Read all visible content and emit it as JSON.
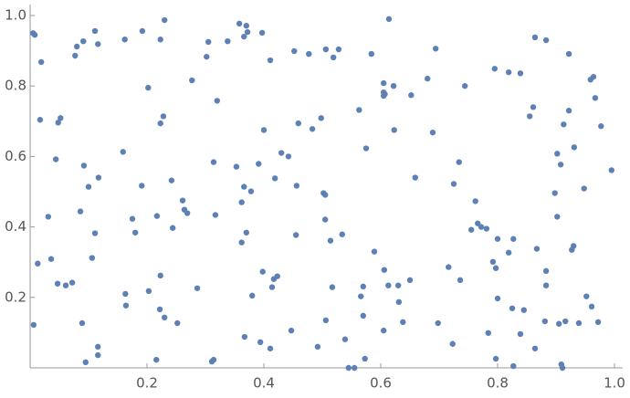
{
  "chart_data": {
    "type": "scatter",
    "color": "#5e81b5",
    "xlim": [
      0,
      1
    ],
    "ylim": [
      0,
      1
    ],
    "xticks": [
      0.2,
      0.4,
      0.6,
      0.8,
      {
        "value": 1,
        "label": "1.0"
      }
    ],
    "yticks": [
      0.2,
      0.4,
      0.6,
      0.8,
      {
        "value": 1,
        "label": "1.0"
      }
    ],
    "x": [
      0.005,
      0.008,
      0.019,
      0.017,
      0.006,
      0.013,
      0.031,
      0.036,
      0.044,
      0.048,
      0.052,
      0.047,
      0.061,
      0.072,
      0.077,
      0.08,
      0.091,
      0.092,
      0.086,
      0.089,
      0.095,
      0.1,
      0.111,
      0.116,
      0.117,
      0.111,
      0.106,
      0.116,
      0.116,
      0.159,
      0.163,
      0.164,
      0.162,
      0.175,
      0.18,
      0.192,
      0.191,
      0.202,
      0.203,
      0.216,
      0.217,
      0.223,
      0.23,
      0.228,
      0.223,
      0.223,
      0.222,
      0.23,
      0.242,
      0.244,
      0.252,
      0.261,
      0.264,
      0.269,
      0.277,
      0.286,
      0.302,
      0.305,
      0.314,
      0.311,
      0.314,
      0.317,
      0.32,
      0.338,
      0.358,
      0.37,
      0.372,
      0.366,
      0.353,
      0.362,
      0.366,
      0.362,
      0.37,
      0.378,
      0.38,
      0.367,
      0.391,
      0.397,
      0.4,
      0.398,
      0.411,
      0.414,
      0.417,
      0.423,
      0.419,
      0.43,
      0.442,
      0.394,
      0.411,
      0.447,
      0.452,
      0.456,
      0.455,
      0.459,
      0.477,
      0.483,
      0.492,
      0.498,
      0.502,
      0.505,
      0.505,
      0.506,
      0.514,
      0.517,
      0.506,
      0.519,
      0.528,
      0.534,
      0.539,
      0.545,
      0.555,
      0.563,
      0.566,
      0.57,
      0.57,
      0.573,
      0.575,
      0.584,
      0.589,
      0.605,
      0.605,
      0.607,
      0.605,
      0.606,
      0.605,
      0.613,
      0.614,
      0.623,
      0.622,
      0.63,
      0.631,
      0.638,
      0.65,
      0.652,
      0.659,
      0.68,
      0.689,
      0.694,
      0.698,
      0.716,
      0.723,
      0.725,
      0.734,
      0.736,
      0.744,
      0.755,
      0.762,
      0.766,
      0.772,
      0.781,
      0.784,
      0.792,
      0.795,
      0.797,
      0.8,
      0.8,
      0.797,
      0.819,
      0.819,
      0.827,
      0.825,
      0.827,
      0.839,
      0.839,
      0.845,
      0.855,
      0.861,
      0.864,
      0.864,
      0.867,
      0.883,
      0.883,
      0.883,
      0.881,
      0.898,
      0.902,
      0.902,
      0.905,
      0.908,
      0.913,
      0.909,
      0.911,
      0.916,
      0.922,
      0.922,
      0.927,
      0.93,
      0.931,
      0.939,
      0.948,
      0.952,
      0.959,
      0.964,
      0.967,
      0.961,
      0.972,
      0.977,
      0.995
    ],
    "y": [
      0.95,
      0.945,
      0.868,
      0.704,
      0.122,
      0.296,
      0.429,
      0.309,
      0.592,
      0.696,
      0.709,
      0.239,
      0.234,
      0.242,
      0.886,
      0.912,
      0.927,
      0.574,
      0.444,
      0.127,
      0.016,
      0.514,
      0.956,
      0.919,
      0.54,
      0.382,
      0.312,
      0.06,
      0.036,
      0.613,
      0.21,
      0.177,
      0.932,
      0.423,
      0.384,
      0.956,
      0.517,
      0.795,
      0.218,
      0.023,
      0.431,
      0.932,
      0.987,
      0.714,
      0.694,
      0.262,
      0.166,
      0.143,
      0.532,
      0.397,
      0.127,
      0.475,
      0.449,
      0.439,
      0.816,
      0.226,
      0.883,
      0.925,
      0.023,
      0.018,
      0.584,
      0.434,
      0.758,
      0.927,
      0.977,
      0.971,
      0.953,
      0.94,
      0.571,
      0.47,
      0.514,
      0.356,
      0.384,
      0.501,
      0.205,
      0.088,
      0.579,
      0.951,
      0.675,
      0.273,
      0.873,
      0.229,
      0.252,
      0.26,
      0.538,
      0.61,
      0.6,
      0.073,
      0.055,
      0.106,
      0.899,
      0.517,
      0.377,
      0.694,
      0.891,
      0.678,
      0.06,
      0.709,
      0.496,
      0.491,
      0.421,
      0.904,
      0.361,
      0.229,
      0.135,
      0.881,
      0.904,
      0.379,
      0.081,
      0.0,
      0.0,
      0.732,
      0.203,
      0.231,
      0.148,
      0.026,
      0.623,
      0.891,
      0.33,
      0.808,
      0.782,
      0.777,
      0.772,
      0.278,
      0.106,
      0.234,
      0.99,
      0.675,
      0.8,
      0.234,
      0.187,
      0.13,
      0.249,
      0.774,
      0.54,
      0.821,
      0.668,
      0.906,
      0.127,
      0.286,
      0.068,
      0.522,
      0.584,
      0.249,
      0.8,
      0.392,
      0.473,
      0.41,
      0.4,
      0.395,
      0.099,
      0.301,
      0.849,
      0.283,
      0.366,
      0.197,
      0.026,
      0.839,
      0.327,
      0.366,
      0.169,
      0.005,
      0.836,
      0.096,
      0.164,
      0.714,
      0.74,
      0.055,
      0.938,
      0.338,
      0.93,
      0.275,
      0.234,
      0.132,
      0.496,
      0.608,
      0.429,
      0.125,
      0.577,
      0.691,
      0.01,
      0.0,
      0.132,
      0.73,
      0.891,
      0.335,
      0.346,
      0.626,
      0.127,
      0.509,
      0.203,
      0.818,
      0.826,
      0.766,
      0.174,
      0.13,
      0.686,
      0.561
    ]
  }
}
